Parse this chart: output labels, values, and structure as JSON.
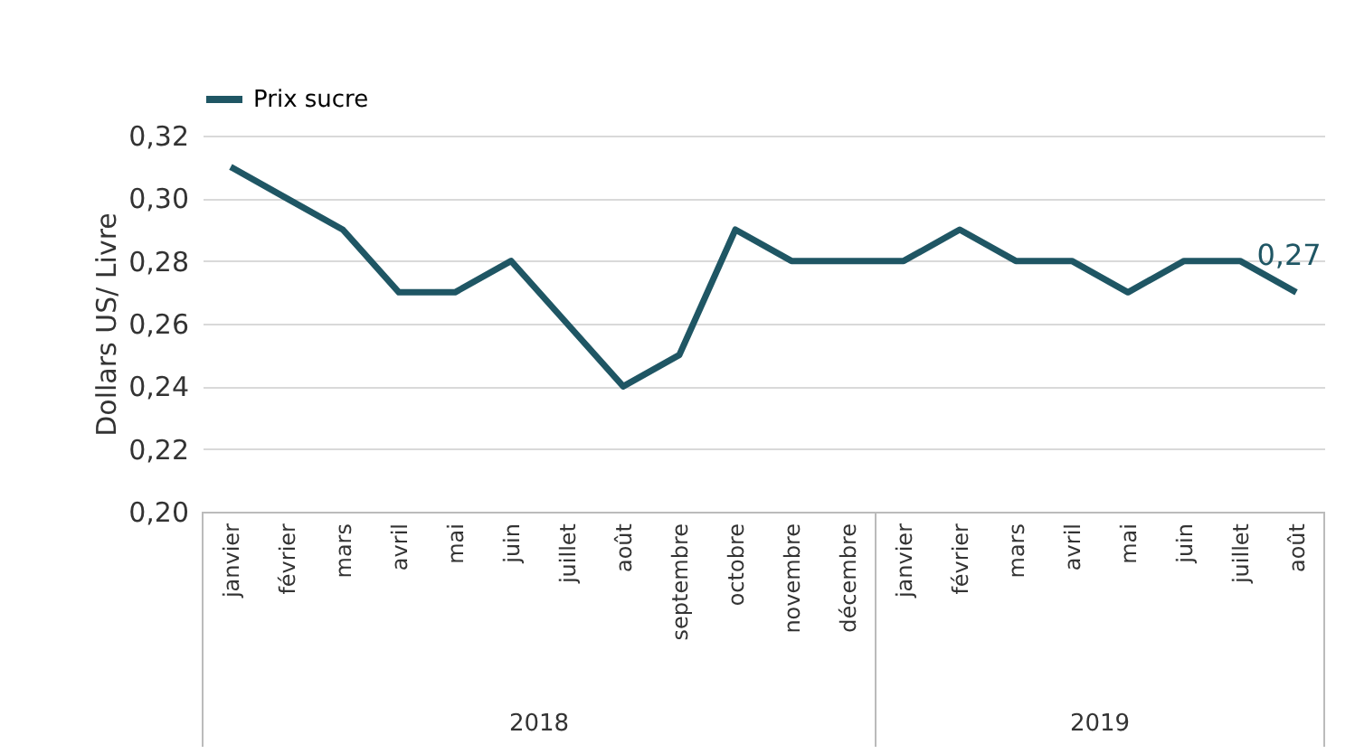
{
  "chart_data": {
    "type": "line",
    "ylabel": "Dollars US/ Livre",
    "categories": [
      "janvier",
      "février",
      "mars",
      "avril",
      "mai",
      "juin",
      "juillet",
      "août",
      "septembre",
      "octobre",
      "novembre",
      "décembre",
      "janvier",
      "février",
      "mars",
      "avril",
      "mai",
      "juin",
      "juillet",
      "août"
    ],
    "series": [
      {
        "name": "Prix sucre",
        "color": "#1f5664",
        "values": [
          0.31,
          0.3,
          0.29,
          0.27,
          0.27,
          0.28,
          0.26,
          0.24,
          0.25,
          0.29,
          0.28,
          0.28,
          0.28,
          0.29,
          0.28,
          0.28,
          0.27,
          0.28,
          0.28,
          0.27
        ],
        "value_labels": [
          null,
          null,
          null,
          null,
          null,
          null,
          null,
          null,
          null,
          null,
          null,
          null,
          null,
          null,
          null,
          null,
          null,
          null,
          null,
          "0,27"
        ]
      }
    ],
    "ylim": [
      0.2,
      0.32
    ],
    "yticks": [
      {
        "value": 0.2,
        "label": "0,20"
      },
      {
        "value": 0.22,
        "label": "0,22"
      },
      {
        "value": 0.24,
        "label": "0,24"
      },
      {
        "value": 0.26,
        "label": "0,26"
      },
      {
        "value": 0.28,
        "label": "0,28"
      },
      {
        "value": 0.3,
        "label": "0,30"
      },
      {
        "value": 0.32,
        "label": "0,32"
      }
    ],
    "grid": "y",
    "legend": "top",
    "marker": "none",
    "line_style": "solid",
    "annotations": [
      "2018",
      "2019"
    ]
  }
}
